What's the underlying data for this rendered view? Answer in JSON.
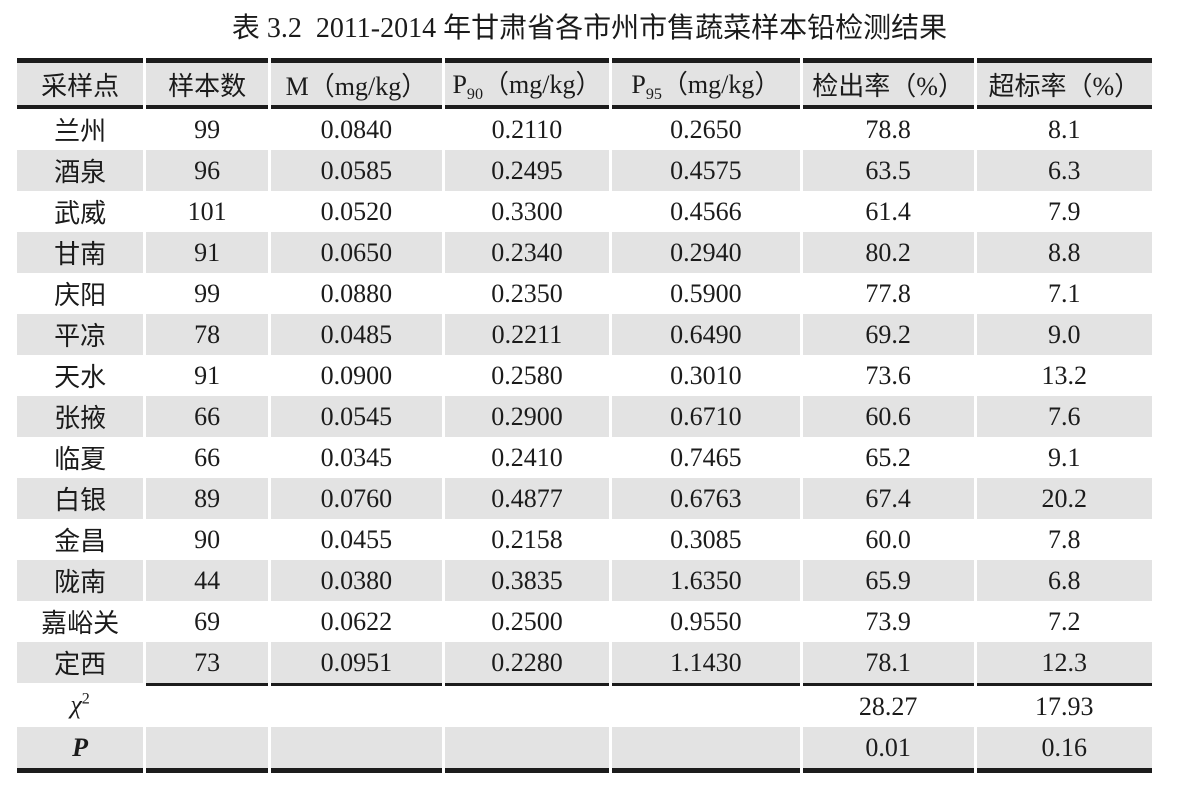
{
  "title": "表 3.2  2011-2014 年甘肃省各市州市售蔬菜样本铅检测结果",
  "colors": {
    "stripe": "#e3e3e3",
    "header_bg": "#e3e3e3",
    "rule": "#1c1c1c",
    "text": "#1b1b1b"
  },
  "table": {
    "columns": [
      {
        "pre": "采样点"
      },
      {
        "pre": "样本数"
      },
      {
        "pre": "M（mg/kg）"
      },
      {
        "pre": "P",
        "sub": "90",
        "post": "（mg/kg）"
      },
      {
        "pre": "P",
        "sub": "95",
        "post": "（mg/kg）"
      },
      {
        "pre": "检出率（%）"
      },
      {
        "pre": "超标率（%）"
      }
    ],
    "rows": [
      {
        "site": "兰州",
        "samples": "99",
        "m": "0.0840",
        "p90": "0.2110",
        "p95": "0.2650",
        "detection_rate": "78.8",
        "exceed_rate": "8.1"
      },
      {
        "site": "酒泉",
        "samples": "96",
        "m": "0.0585",
        "p90": "0.2495",
        "p95": "0.4575",
        "detection_rate": "63.5",
        "exceed_rate": "6.3"
      },
      {
        "site": "武威",
        "samples": "101",
        "m": "0.0520",
        "p90": "0.3300",
        "p95": "0.4566",
        "detection_rate": "61.4",
        "exceed_rate": "7.9"
      },
      {
        "site": "甘南",
        "samples": "91",
        "m": "0.0650",
        "p90": "0.2340",
        "p95": "0.2940",
        "detection_rate": "80.2",
        "exceed_rate": "8.8"
      },
      {
        "site": "庆阳",
        "samples": "99",
        "m": "0.0880",
        "p90": "0.2350",
        "p95": "0.5900",
        "detection_rate": "77.8",
        "exceed_rate": "7.1"
      },
      {
        "site": "平凉",
        "samples": "78",
        "m": "0.0485",
        "p90": "0.2211",
        "p95": "0.6490",
        "detection_rate": "69.2",
        "exceed_rate": "9.0"
      },
      {
        "site": "天水",
        "samples": "91",
        "m": "0.0900",
        "p90": "0.2580",
        "p95": "0.3010",
        "detection_rate": "73.6",
        "exceed_rate": "13.2"
      },
      {
        "site": "张掖",
        "samples": "66",
        "m": "0.0545",
        "p90": "0.2900",
        "p95": "0.6710",
        "detection_rate": "60.6",
        "exceed_rate": "7.6"
      },
      {
        "site": "临夏",
        "samples": "66",
        "m": "0.0345",
        "p90": "0.2410",
        "p95": "0.7465",
        "detection_rate": "65.2",
        "exceed_rate": "9.1"
      },
      {
        "site": "白银",
        "samples": "89",
        "m": "0.0760",
        "p90": "0.4877",
        "p95": "0.6763",
        "detection_rate": "67.4",
        "exceed_rate": "20.2"
      },
      {
        "site": "金昌",
        "samples": "90",
        "m": "0.0455",
        "p90": "0.2158",
        "p95": "0.3085",
        "detection_rate": "60.0",
        "exceed_rate": "7.8"
      },
      {
        "site": "陇南",
        "samples": "44",
        "m": "0.0380",
        "p90": "0.3835",
        "p95": "1.6350",
        "detection_rate": "65.9",
        "exceed_rate": "6.8"
      },
      {
        "site": "嘉峪关",
        "samples": "69",
        "m": "0.0622",
        "p90": "0.2500",
        "p95": "0.9550",
        "detection_rate": "73.9",
        "exceed_rate": "7.2"
      },
      {
        "site": "定西",
        "samples": "73",
        "m": "0.0951",
        "p90": "0.2280",
        "p95": "1.1430",
        "detection_rate": "78.1",
        "exceed_rate": "12.3"
      }
    ],
    "stats": [
      {
        "label": "χ",
        "label_sup": "2",
        "detection_rate": "28.27",
        "exceed_rate": "17.93"
      },
      {
        "label": "P",
        "detection_rate": "0.01",
        "exceed_rate": "0.16"
      }
    ]
  }
}
